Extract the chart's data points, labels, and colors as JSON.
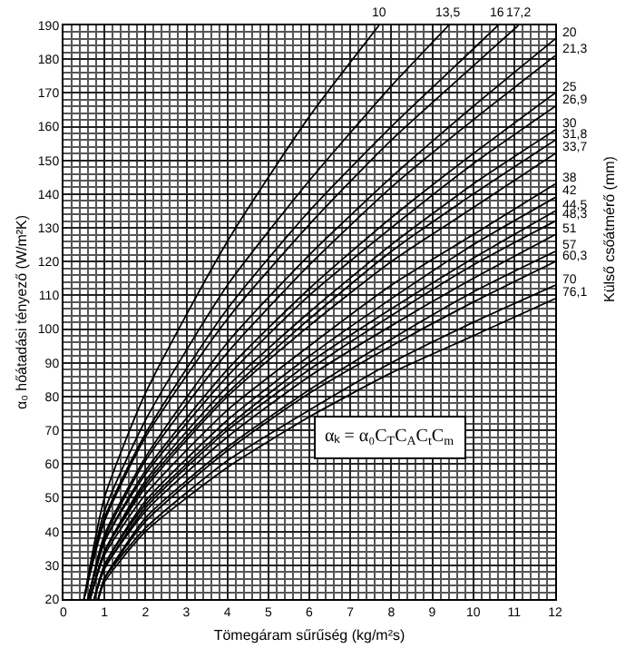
{
  "chart_data": {
    "type": "line",
    "xlabel": "Tömegáram sűrűség (kg/m²s)",
    "ylabel": "α₀ hőátadási tényező (W/m²K)",
    "xlim": [
      0,
      12
    ],
    "ylim": [
      20,
      190
    ],
    "xticks": [
      0,
      1,
      2,
      3,
      4,
      5,
      6,
      7,
      8,
      9,
      10,
      11,
      12
    ],
    "yticks": [
      20,
      30,
      40,
      50,
      60,
      70,
      80,
      90,
      100,
      110,
      120,
      130,
      140,
      150,
      160,
      170,
      180,
      190
    ],
    "grid": true,
    "legend": false,
    "marker": "none",
    "line_style": "solid",
    "annotations": [
      "αₖ = α₀C$_{T}$C$_{A}$C$_{t}$C$_{m}$",
      "Külső csőátmérő (mm)"
    ],
    "series": [
      {
        "name": "10",
        "color": "#000000",
        "x": [
          0.5,
          1,
          2,
          4,
          6,
          7.7
        ],
        "values": [
          20,
          50,
          81,
          126,
          163,
          190
        ]
      },
      {
        "name": "13,5",
        "color": "#000000",
        "x": [
          0.5,
          1,
          2,
          4,
          6,
          8,
          9.4
        ],
        "values": [
          20,
          46,
          73,
          113,
          144,
          172,
          190
        ]
      },
      {
        "name": "16",
        "color": "#000000",
        "x": [
          0.5,
          1,
          2,
          4,
          6,
          8,
          10,
          10.6
        ],
        "values": [
          20,
          44,
          69,
          106,
          135,
          160,
          183,
          190
        ]
      },
      {
        "name": "17,2",
        "color": "#000000",
        "x": [
          0.5,
          1,
          2,
          4,
          6,
          8,
          10,
          11.1
        ],
        "values": [
          20,
          43,
          68,
          103,
          131,
          156,
          178,
          190
        ]
      },
      {
        "name": "20",
        "color": "#000000",
        "x": [
          0.6,
          1,
          2,
          4,
          6,
          8,
          10,
          12
        ],
        "values": [
          20,
          39,
          62,
          96,
          122,
          145,
          166,
          186
        ]
      },
      {
        "name": "21,3",
        "color": "#000000",
        "x": [
          0.6,
          1,
          2,
          4,
          6,
          8,
          10,
          12
        ],
        "values": [
          20,
          38,
          61,
          93,
          119,
          142,
          162,
          181
        ]
      },
      {
        "name": "25",
        "color": "#000000",
        "x": [
          0.6,
          1,
          2,
          4,
          6,
          8,
          10,
          12
        ],
        "values": [
          20,
          37,
          58,
          88,
          112,
          133,
          152,
          170
        ]
      },
      {
        "name": "26,9",
        "color": "#000000",
        "x": [
          0.6,
          1,
          2,
          4,
          6,
          8,
          10,
          12
        ],
        "values": [
          20,
          37,
          57,
          86,
          110,
          130,
          149,
          166
        ]
      },
      {
        "name": "30",
        "color": "#000000",
        "x": [
          0.65,
          1,
          2,
          4,
          6,
          8,
          10,
          12
        ],
        "values": [
          20,
          34,
          55,
          83,
          105,
          125,
          143,
          159
        ]
      },
      {
        "name": "31,8",
        "color": "#000000",
        "x": [
          0.65,
          1,
          2,
          4,
          6,
          8,
          10,
          12
        ],
        "values": [
          20,
          34,
          54,
          81,
          103,
          123,
          140,
          156
        ]
      },
      {
        "name": "33,7",
        "color": "#000000",
        "x": [
          0.65,
          1,
          2,
          4,
          6,
          8,
          10,
          12
        ],
        "values": [
          20,
          34,
          53,
          80,
          101,
          120,
          136,
          152
        ]
      },
      {
        "name": "38",
        "color": "#000000",
        "x": [
          0.65,
          1,
          2,
          4,
          6,
          8,
          10,
          12
        ],
        "values": [
          20,
          33,
          51,
          76,
          95,
          113,
          128,
          143
        ]
      },
      {
        "name": "42",
        "color": "#000000",
        "x": [
          0.75,
          1,
          2,
          4,
          6,
          8,
          10,
          12
        ],
        "values": [
          20,
          30,
          49,
          73,
          92,
          109,
          125,
          139
        ]
      },
      {
        "name": "44,5",
        "color": "#000000",
        "x": [
          0.75,
          1,
          2,
          4,
          6,
          8,
          10,
          12
        ],
        "values": [
          20,
          30,
          48,
          71,
          90,
          106,
          121,
          135
        ]
      },
      {
        "name": "48,3",
        "color": "#000000",
        "x": [
          0.75,
          1,
          2,
          4,
          6,
          8,
          10,
          12
        ],
        "values": [
          20,
          29,
          47,
          70,
          88,
          104,
          119,
          132
        ]
      },
      {
        "name": "51",
        "color": "#000000",
        "x": [
          0.75,
          1,
          2,
          4,
          6,
          8,
          10,
          12
        ],
        "values": [
          20,
          29,
          46,
          68,
          86,
          101,
          115,
          128
        ]
      },
      {
        "name": "57",
        "color": "#000000",
        "x": [
          0.85,
          1,
          2,
          4,
          6,
          8,
          10,
          12
        ],
        "values": [
          20,
          26,
          44,
          65,
          82,
          97,
          111,
          123
        ]
      },
      {
        "name": "60,3",
        "color": "#000000",
        "x": [
          0.85,
          1,
          2,
          4,
          6,
          8,
          10,
          12
        ],
        "values": [
          20,
          26,
          43,
          64,
          81,
          95,
          108,
          120
        ]
      },
      {
        "name": "70",
        "color": "#000000",
        "x": [
          0.85,
          1,
          2,
          4,
          6,
          8,
          10,
          12
        ],
        "values": [
          20,
          26,
          41,
          61,
          76,
          90,
          102,
          113
        ]
      },
      {
        "name": "76,1",
        "color": "#000000",
        "x": [
          0.85,
          1,
          2,
          4,
          6,
          8,
          10,
          12
        ],
        "values": [
          20,
          25,
          40,
          59,
          74,
          87,
          98,
          109
        ]
      }
    ]
  }
}
